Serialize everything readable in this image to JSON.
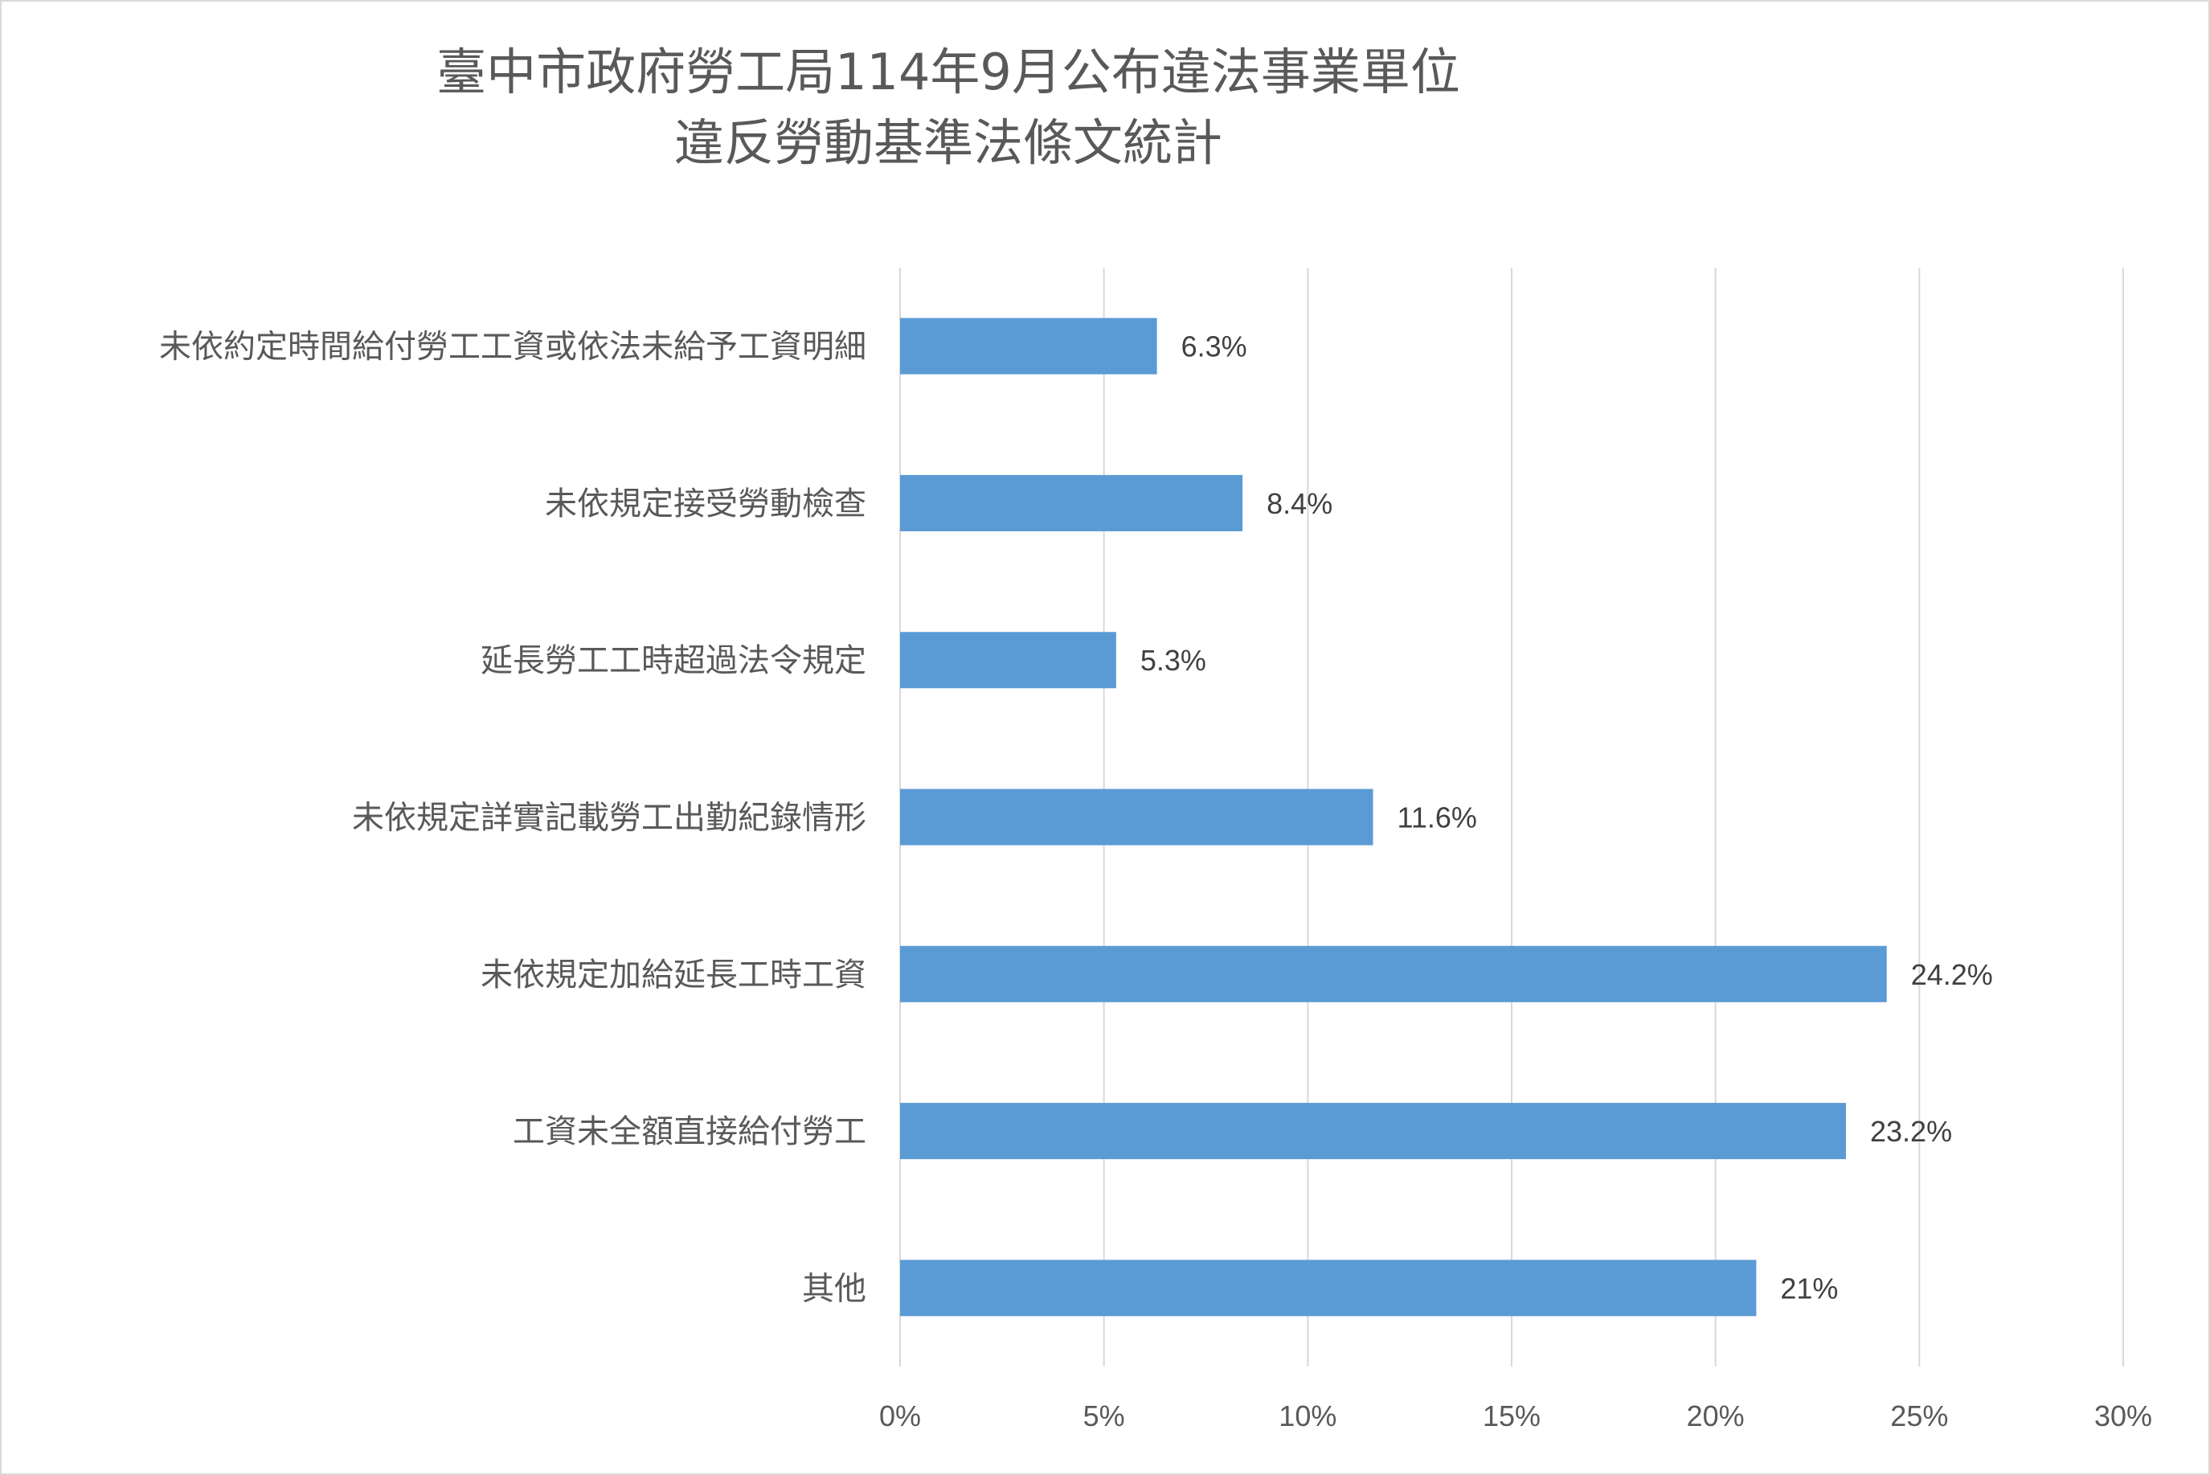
{
  "chart_data": {
    "type": "bar",
    "orientation": "horizontal",
    "title_lines": [
      "臺中市政府勞工局114年9月公布違法事業單位",
      "違反勞動基準法條文統計"
    ],
    "categories": [
      "未依約定時間給付勞工工資或依法未給予工資明細",
      "未依規定接受勞動檢查",
      "延長勞工工時超過法令規定",
      "未依規定詳實記載勞工出勤紀錄情形",
      "未依規定加給延長工時工資",
      "工資未全額直接給付勞工",
      "其他"
    ],
    "values": [
      6.3,
      8.4,
      5.3,
      11.6,
      24.2,
      23.2,
      21
    ],
    "data_labels": [
      "6.3%",
      "8.4%",
      "5.3%",
      "11.6%",
      "24.2%",
      "23.2%",
      "21%"
    ],
    "xlim": [
      0,
      30
    ],
    "x_ticks": [
      0,
      5,
      10,
      15,
      20,
      25,
      30
    ],
    "x_tick_labels": [
      "0%",
      "5%",
      "10%",
      "15%",
      "20%",
      "25%",
      "30%"
    ],
    "xlabel": "",
    "ylabel": "",
    "grid": "vertical",
    "legend": "none",
    "bar_color": "#5b9bd5",
    "grid_color": "#d9d9d9"
  }
}
